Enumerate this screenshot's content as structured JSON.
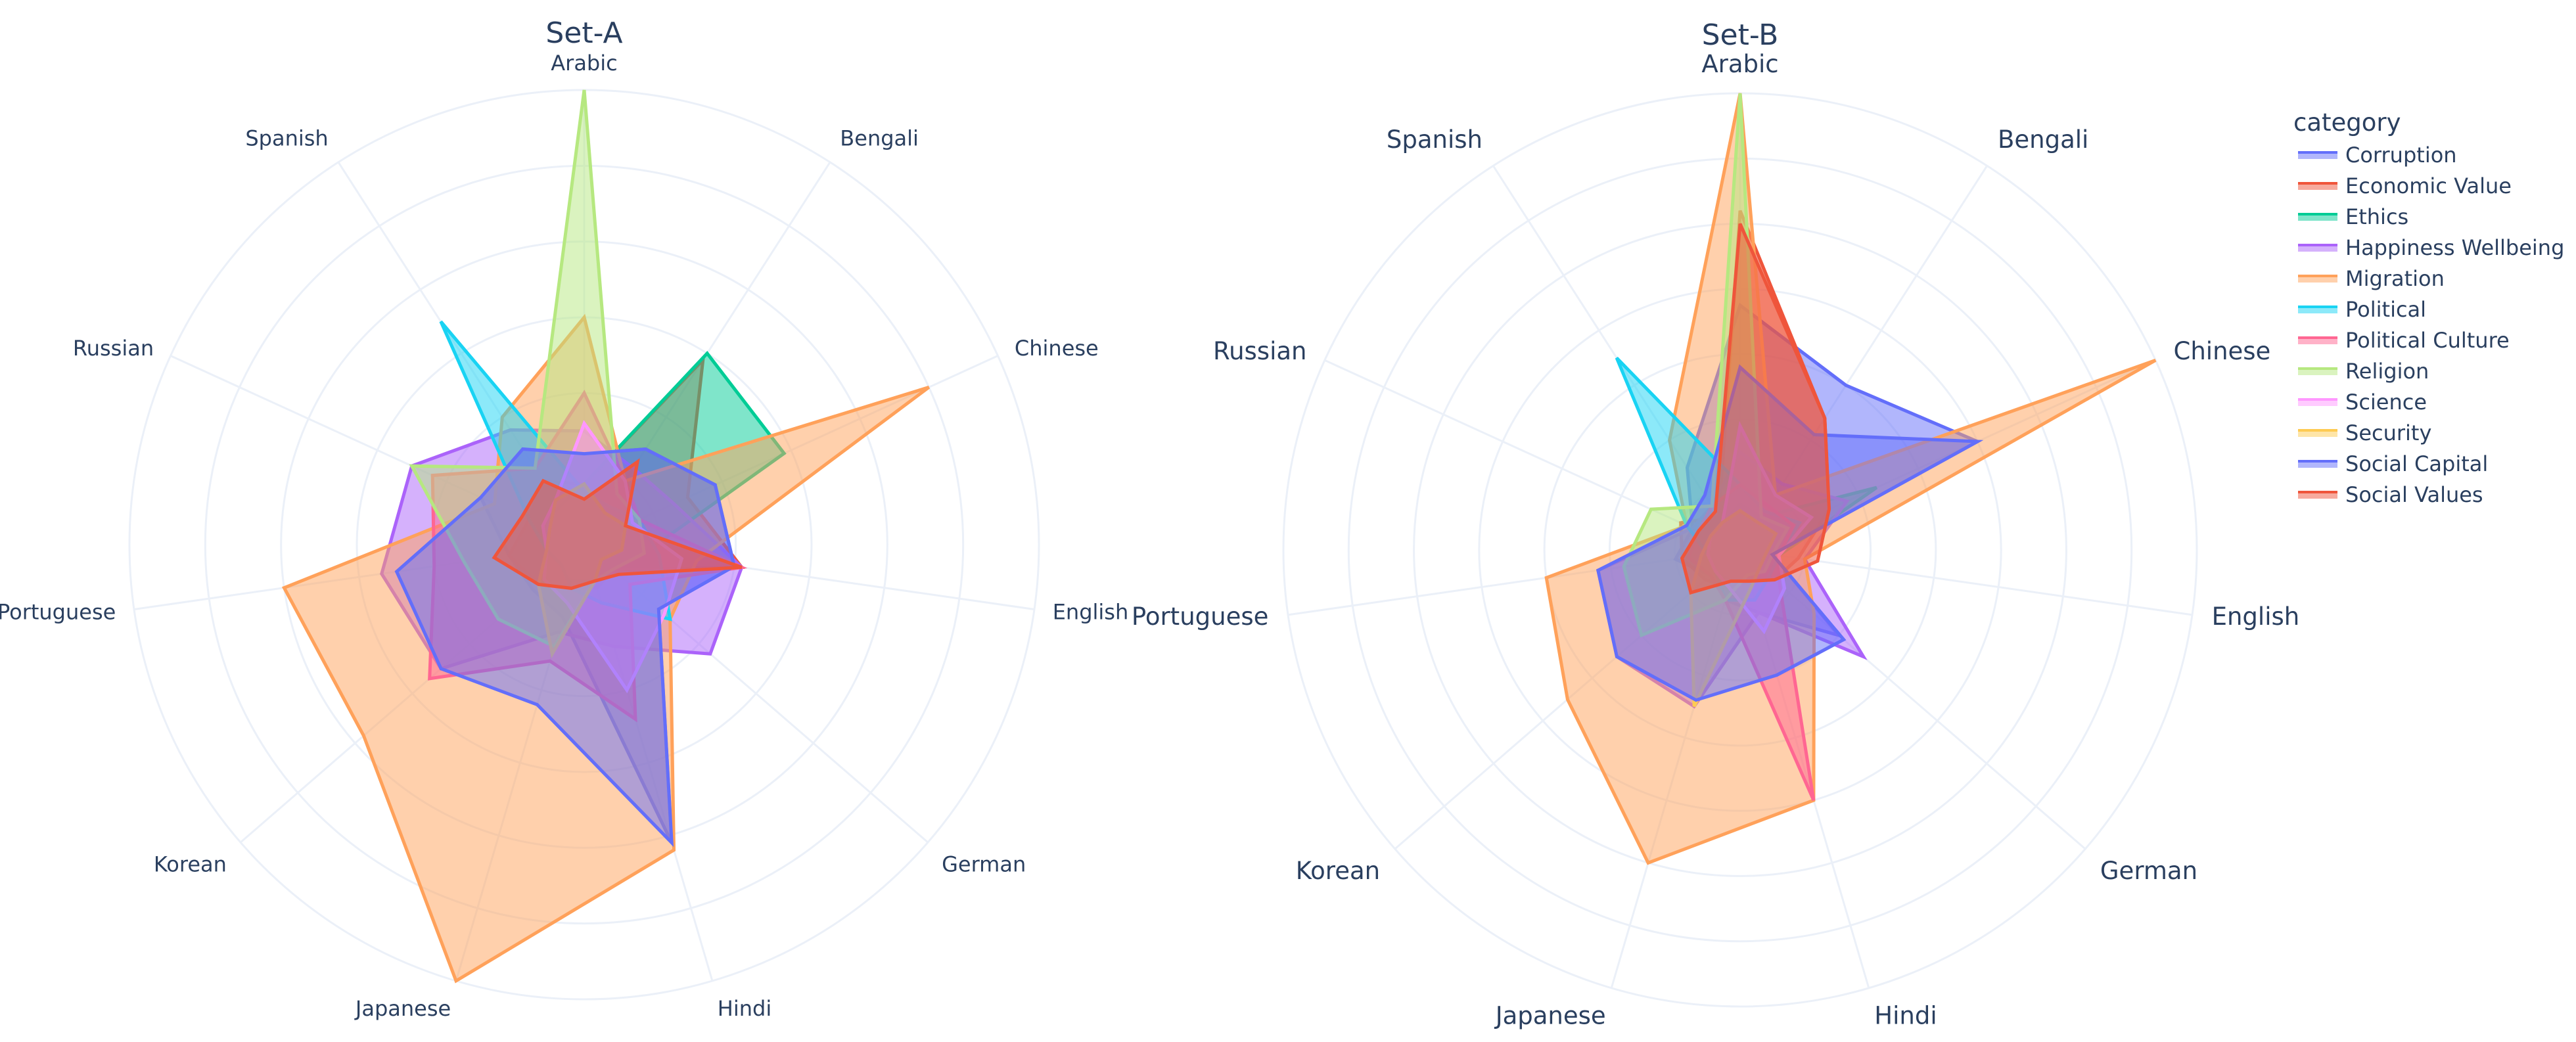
{
  "chart_data": [
    {
      "type": "radar",
      "title": "Set-A",
      "categories": [
        "Arabic",
        "Bengali",
        "Chinese",
        "English",
        "German",
        "Hindi",
        "Japanese",
        "Korean",
        "Portuguese",
        "Russian",
        "Spanish"
      ],
      "radial_range": [
        0,
        6
      ],
      "grid": true,
      "series": [
        {
          "name": "Corruption",
          "values": [
            1.2,
            1.5,
            1.9,
            2.0,
            1.3,
            4.1,
            1.0,
            0.9,
            1.0,
            1.5,
            1.5
          ]
        },
        {
          "name": "Economic Value",
          "values": [
            0.8,
            2.9,
            1.5,
            2.1,
            0.5,
            0.6,
            0.5,
            0.8,
            1.0,
            0.8,
            1.0
          ]
        },
        {
          "name": "Ethics",
          "values": [
            0.8,
            3.0,
            2.9,
            0.8,
            0.5,
            0.5,
            0.5,
            0.5,
            0.5,
            0.6,
            0.6
          ]
        },
        {
          "name": "Happiness Wellbeing",
          "values": [
            1.5,
            1.2,
            1.3,
            2.1,
            2.2,
            1.4,
            1.2,
            2.5,
            2.7,
            2.5,
            1.8
          ]
        },
        {
          "name": "Migration",
          "values": [
            3.0,
            1.0,
            5.0,
            1.5,
            1.5,
            4.2,
            6.0,
            3.85,
            4.0,
            1.3,
            2.0
          ]
        },
        {
          "name": "Political",
          "values": [
            0.7,
            0.6,
            0.8,
            1.0,
            1.5,
            0.8,
            0.6,
            0.4,
            0.5,
            0.8,
            3.5
          ]
        },
        {
          "name": "Political Culture",
          "values": [
            2.0,
            1.0,
            0.8,
            2.1,
            0.8,
            2.4,
            1.6,
            2.7,
            2.0,
            2.2,
            1.2
          ]
        },
        {
          "name": "Religion",
          "values": [
            6.0,
            0.8,
            0.8,
            0.8,
            0.5,
            0.5,
            1.4,
            1.5,
            1.6,
            2.5,
            1.2
          ]
        },
        {
          "name": "Science",
          "values": [
            1.6,
            1.0,
            0.7,
            1.3,
            1.4,
            2.0,
            0.8,
            0.7,
            0.5,
            0.6,
            0.7
          ]
        },
        {
          "name": "Security",
          "values": [
            0.8,
            0.5,
            0.6,
            0.5,
            0.3,
            0.5,
            1.5,
            0.8,
            0.5,
            0.5,
            0.7
          ]
        },
        {
          "name": "Social Capital",
          "values": [
            1.2,
            1.5,
            1.9,
            2.0,
            1.3,
            4.1,
            2.2,
            2.5,
            2.5,
            1.5,
            1.5
          ]
        },
        {
          "name": "Social Values",
          "values": [
            0.6,
            1.3,
            0.6,
            2.1,
            0.6,
            0.5,
            0.6,
            0.8,
            1.2,
            0.9,
            1.0
          ]
        }
      ]
    },
    {
      "type": "radar",
      "title": "Set-B",
      "categories": [
        "Arabic",
        "Bengali",
        "Chinese",
        "English",
        "German",
        "Hindi",
        "Japanese",
        "Korean",
        "Portuguese",
        "Russian",
        "Spanish"
      ],
      "radial_range": [
        0,
        7
      ],
      "grid": true,
      "series": [
        {
          "name": "Corruption",
          "values": [
            3.75,
            3.0,
            4.0,
            0.5,
            2.0,
            1.0,
            0.8,
            0.6,
            1.0,
            0.8,
            1.5
          ]
        },
        {
          "name": "Economic Value",
          "values": [
            5.2,
            2.4,
            1.5,
            0.9,
            0.7,
            0.5,
            0.6,
            0.7,
            0.9,
            1.0,
            0.6
          ]
        },
        {
          "name": "Ethics",
          "values": [
            0.7,
            0.6,
            2.3,
            0.6,
            0.5,
            0.5,
            0.5,
            0.5,
            0.5,
            0.5,
            0.5
          ]
        },
        {
          "name": "Happiness Wellbeing",
          "values": [
            1.5,
            1.2,
            1.8,
            1.0,
            2.5,
            1.0,
            2.5,
            2.5,
            2.2,
            0.8,
            0.8
          ]
        },
        {
          "name": "Migration",
          "values": [
            7.0,
            1.0,
            7.0,
            1.0,
            1.5,
            4.0,
            5.0,
            3.5,
            3.0,
            0.9,
            2.0
          ]
        },
        {
          "name": "Political",
          "values": [
            1.0,
            0.7,
            1.0,
            0.6,
            0.6,
            0.8,
            0.8,
            0.5,
            0.5,
            0.9,
            3.5
          ]
        },
        {
          "name": "Political Culture",
          "values": [
            1.0,
            0.8,
            0.9,
            0.6,
            0.8,
            4.0,
            0.8,
            0.6,
            0.8,
            0.7,
            0.8
          ]
        },
        {
          "name": "Religion",
          "values": [
            7.0,
            0.6,
            0.8,
            0.5,
            0.5,
            0.4,
            0.8,
            2.0,
            1.8,
            1.5,
            0.8
          ]
        },
        {
          "name": "Science",
          "values": [
            1.9,
            1.0,
            1.2,
            0.6,
            0.9,
            1.3,
            0.6,
            0.5,
            0.5,
            0.5,
            0.5
          ]
        },
        {
          "name": "Security",
          "values": [
            0.6,
            0.5,
            0.6,
            0.4,
            0.4,
            0.6,
            2.5,
            1.0,
            0.6,
            0.5,
            0.5
          ]
        },
        {
          "name": "Social Capital",
          "values": [
            2.8,
            2.1,
            4.0,
            0.5,
            2.1,
            2.0,
            2.4,
            2.5,
            2.2,
            0.9,
            1.0
          ]
        },
        {
          "name": "Social Values",
          "values": [
            5.0,
            2.4,
            1.5,
            1.2,
            0.7,
            0.5,
            0.5,
            1.0,
            0.9,
            0.7,
            0.7
          ]
        }
      ]
    }
  ],
  "legend": {
    "title": "category",
    "items": [
      {
        "label": "Corruption",
        "color": "#636efa"
      },
      {
        "label": "Economic Value",
        "color": "#EF553B"
      },
      {
        "label": "Ethics",
        "color": "#00cc96"
      },
      {
        "label": "Happiness Wellbeing",
        "color": "#ab63fa"
      },
      {
        "label": "Migration",
        "color": "#FFA15A"
      },
      {
        "label": "Political",
        "color": "#19d3f3"
      },
      {
        "label": "Political Culture",
        "color": "#FF6692"
      },
      {
        "label": "Religion",
        "color": "#B6E880"
      },
      {
        "label": "Science",
        "color": "#FF97FF"
      },
      {
        "label": "Security",
        "color": "#FECB52"
      },
      {
        "label": "Social Capital",
        "color": "#636efa"
      },
      {
        "label": "Social Values",
        "color": "#EF553B"
      }
    ]
  },
  "colors": {
    "grid": "#ebf0f8",
    "text": "#2a3f5f",
    "background": "#ffffff"
  }
}
